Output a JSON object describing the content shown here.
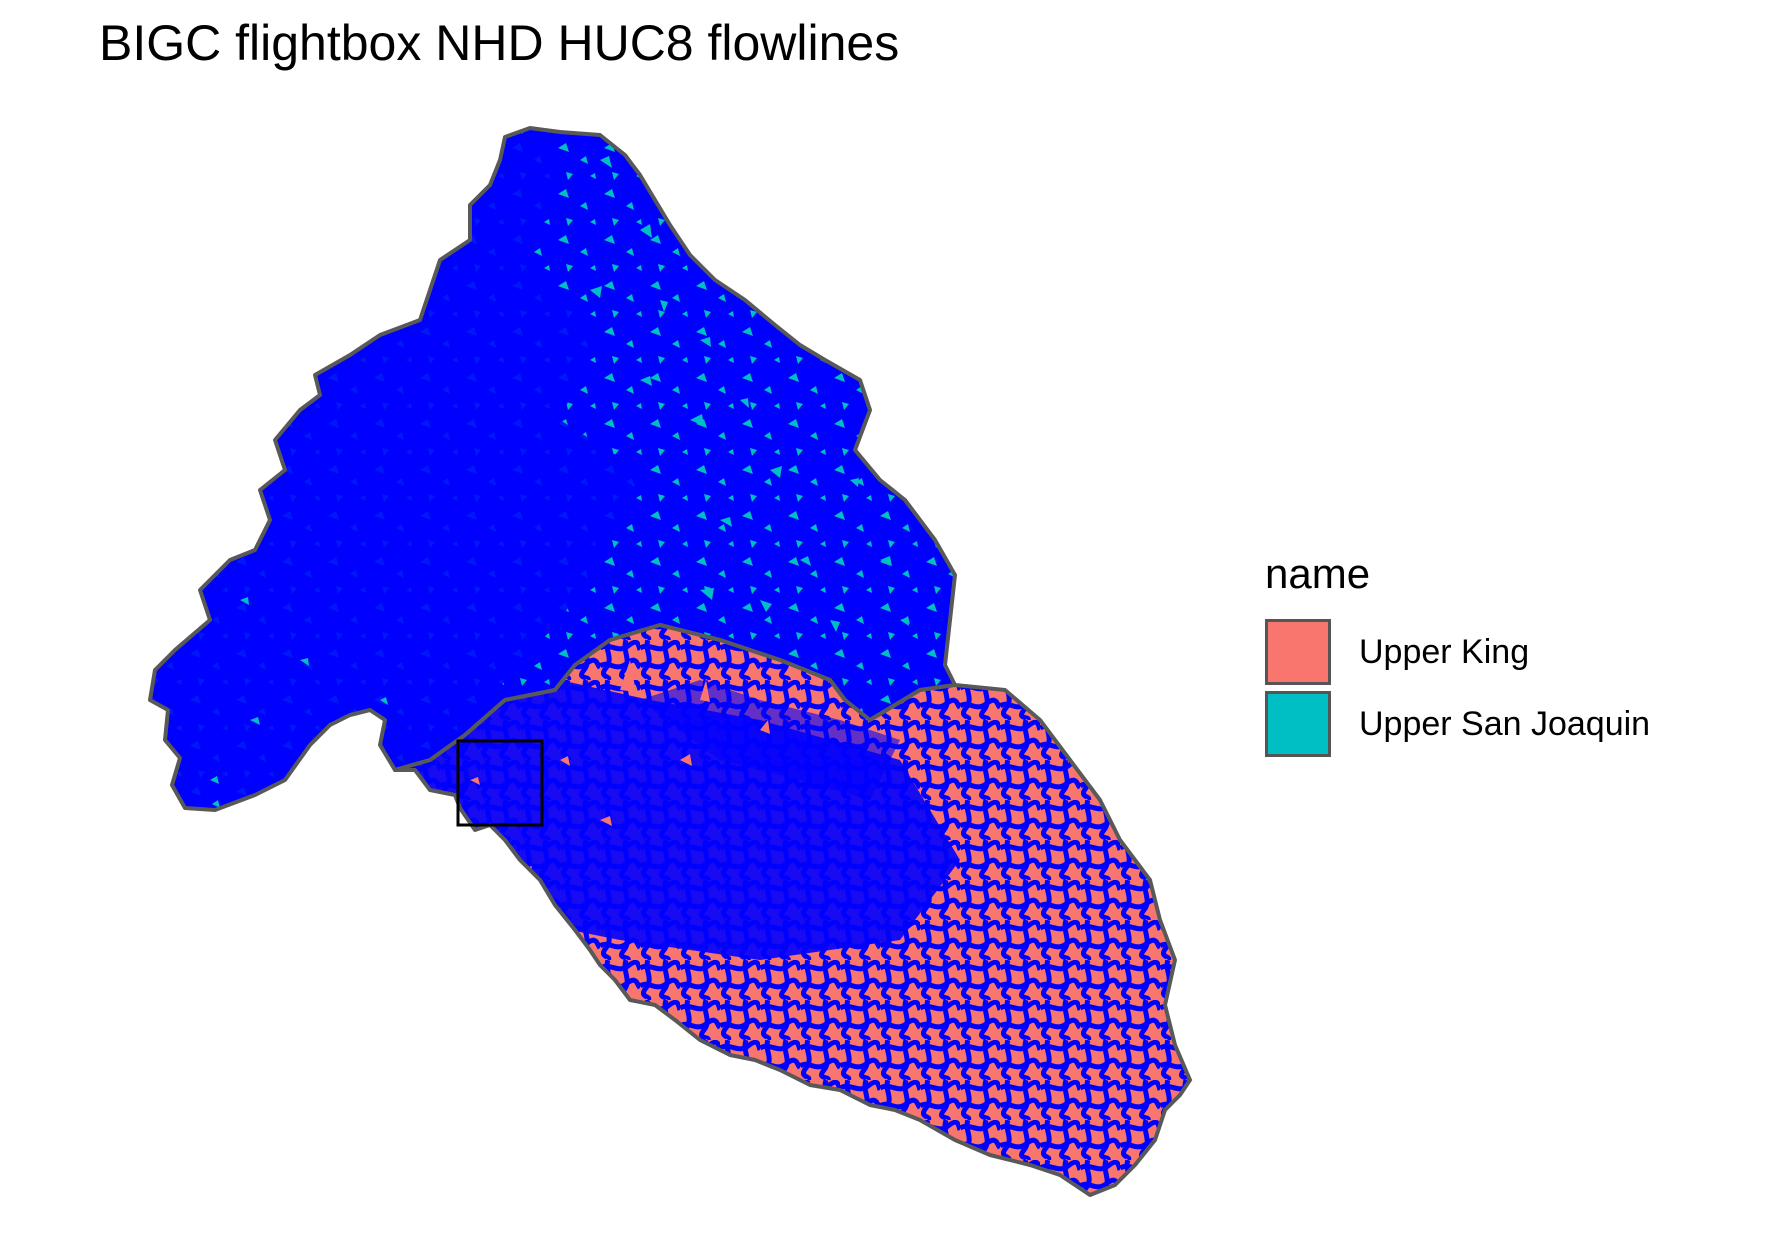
{
  "title": "BIGC flightbox NHD HUC8 flowlines",
  "legend": {
    "title": "name",
    "items": [
      {
        "label": "Upper King",
        "color": "#F8766D"
      },
      {
        "label": "Upper San Joaquin",
        "color": "#00BFC4"
      }
    ]
  },
  "layers": {
    "flowline_color": "#0000FF",
    "boundary_color": "#595959",
    "flightbox_color": "#000000"
  }
}
